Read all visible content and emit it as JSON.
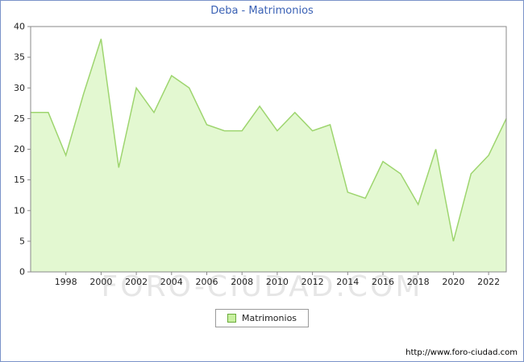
{
  "chart_data": {
    "type": "area",
    "title": "Deba - Matrimonios",
    "legend": "Matrimonios",
    "xlabel": "",
    "ylabel": "",
    "ylim": [
      0,
      40
    ],
    "ytick_step": 5,
    "grid": false,
    "legend_position": "bottom-center",
    "years": [
      1996,
      1997,
      1998,
      1999,
      2000,
      2001,
      2002,
      2003,
      2004,
      2005,
      2006,
      2007,
      2008,
      2009,
      2010,
      2011,
      2012,
      2013,
      2014,
      2015,
      2016,
      2017,
      2018,
      2019,
      2020,
      2021,
      2022,
      2023
    ],
    "values": [
      26,
      26,
      19,
      29,
      38,
      17,
      30,
      26,
      32,
      30,
      24,
      23,
      23,
      27,
      23,
      26,
      23,
      24,
      13,
      12,
      18,
      16,
      11,
      20,
      5,
      16,
      19,
      25
    ],
    "xtick_years": [
      1998,
      2000,
      2002,
      2004,
      2006,
      2008,
      2010,
      2012,
      2014,
      2016,
      2018,
      2020,
      2022
    ],
    "colors": {
      "title": "#3b62b5",
      "area_fill": "#e3f8d1",
      "line": "#9ed56f",
      "legend_fill": "#c8f0a0",
      "legend_border": "#6aaa3a",
      "axis": "#8a8a8a",
      "tick_text": "#222222"
    }
  },
  "watermark": "FORO-CIUDAD.COM",
  "footer": {
    "url": "http://www.foro-ciudad.com"
  }
}
